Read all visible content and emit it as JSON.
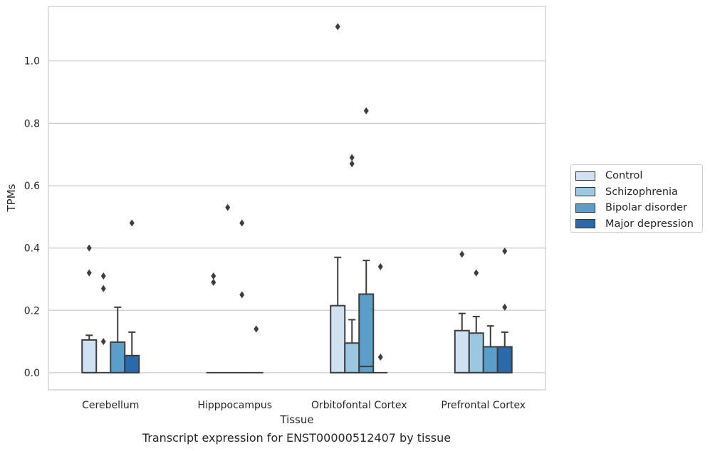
{
  "chart_data": {
    "type": "box",
    "title": "Transcript expression for ENST00000512407 by tissue",
    "xlabel": "Tissue",
    "ylabel": "TPMs",
    "ylim": [
      -0.055,
      1.175
    ],
    "yticks": [
      0.0,
      0.2,
      0.4,
      0.6,
      0.8,
      1.0
    ],
    "ytick_labels": [
      "0.0",
      "0.2",
      "0.4",
      "0.6",
      "0.8",
      "1.0"
    ],
    "grid": "horizontal",
    "legend_position": "right",
    "categories": [
      "Cerebellum",
      "Hipppocampus",
      "Orbitofontal Cortex",
      "Prefrontal Cortex"
    ],
    "series": [
      {
        "name": "Control",
        "color": "#d0e1f2",
        "boxes": [
          {
            "q1": 0.0,
            "median": 0.0,
            "q3": 0.105,
            "whisker_low": 0.0,
            "whisker_high": 0.12,
            "outliers": [
              0.32,
              0.4
            ]
          },
          {
            "q1": 0.0,
            "median": 0.0,
            "q3": 0.0,
            "whisker_low": 0.0,
            "whisker_high": 0.0,
            "outliers": [
              0.29,
              0.31
            ]
          },
          {
            "q1": 0.0,
            "median": 0.0,
            "q3": 0.215,
            "whisker_low": 0.0,
            "whisker_high": 0.37,
            "outliers": [
              1.11
            ]
          },
          {
            "q1": 0.0,
            "median": 0.0,
            "q3": 0.135,
            "whisker_low": 0.0,
            "whisker_high": 0.19,
            "outliers": [
              0.38
            ]
          }
        ]
      },
      {
        "name": "Schizophrenia",
        "color": "#9ac8e0",
        "boxes": [
          {
            "q1": 0.0,
            "median": 0.0,
            "q3": 0.0,
            "whisker_low": 0.0,
            "whisker_high": 0.0,
            "outliers": [
              0.1,
              0.27,
              0.31
            ]
          },
          {
            "q1": 0.0,
            "median": 0.0,
            "q3": 0.0,
            "whisker_low": 0.0,
            "whisker_high": 0.0,
            "outliers": [
              0.53
            ]
          },
          {
            "q1": 0.0,
            "median": 0.0,
            "q3": 0.095,
            "whisker_low": 0.0,
            "whisker_high": 0.17,
            "outliers": [
              0.67,
              0.69
            ]
          },
          {
            "q1": 0.0,
            "median": 0.0,
            "q3": 0.127,
            "whisker_low": 0.0,
            "whisker_high": 0.18,
            "outliers": [
              0.32
            ]
          }
        ]
      },
      {
        "name": "Bipolar disorder",
        "color": "#5a9ec9",
        "boxes": [
          {
            "q1": 0.0,
            "median": 0.0,
            "q3": 0.098,
            "whisker_low": 0.0,
            "whisker_high": 0.21,
            "outliers": []
          },
          {
            "q1": 0.0,
            "median": 0.0,
            "q3": 0.0,
            "whisker_low": 0.0,
            "whisker_high": 0.0,
            "outliers": [
              0.25,
              0.48
            ]
          },
          {
            "q1": 0.0,
            "median": 0.02,
            "q3": 0.252,
            "whisker_low": 0.0,
            "whisker_high": 0.36,
            "outliers": [
              0.84
            ]
          },
          {
            "q1": 0.0,
            "median": 0.0,
            "q3": 0.083,
            "whisker_low": 0.0,
            "whisker_high": 0.15,
            "outliers": []
          }
        ]
      },
      {
        "name": "Major depression",
        "color": "#2a69ab",
        "boxes": [
          {
            "q1": 0.0,
            "median": 0.0,
            "q3": 0.055,
            "whisker_low": 0.0,
            "whisker_high": 0.13,
            "outliers": [
              0.48
            ]
          },
          {
            "q1": 0.0,
            "median": 0.0,
            "q3": 0.0,
            "whisker_low": 0.0,
            "whisker_high": 0.0,
            "outliers": [
              0.14
            ]
          },
          {
            "q1": 0.0,
            "median": 0.0,
            "q3": 0.0,
            "whisker_low": 0.0,
            "whisker_high": 0.0,
            "outliers": [
              0.05,
              0.34
            ]
          },
          {
            "q1": 0.0,
            "median": 0.0,
            "q3": 0.083,
            "whisker_low": 0.0,
            "whisker_high": 0.13,
            "outliers": [
              0.21,
              0.39
            ]
          }
        ]
      }
    ]
  }
}
